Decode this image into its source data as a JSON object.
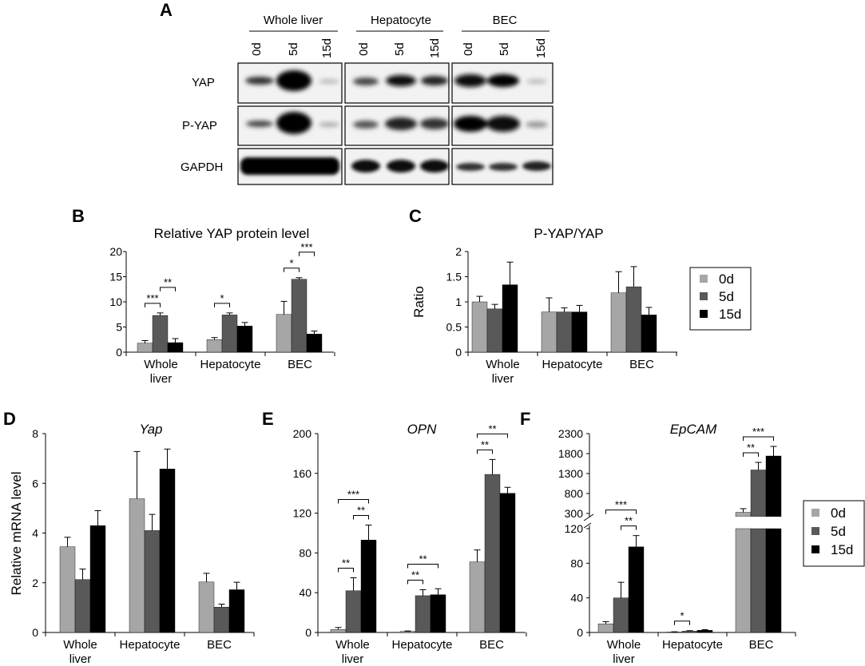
{
  "colors": {
    "d0": "#a6a6a6",
    "d5": "#595959",
    "d15": "#000000"
  },
  "legend": {
    "labels": [
      "0d",
      "5d",
      "15d"
    ]
  },
  "blot": {
    "panel_letter": "A",
    "groups": [
      "Whole liver",
      "Hepatocyte",
      "BEC"
    ],
    "lanes": [
      "0d",
      "5d",
      "15d"
    ],
    "rows": [
      "YAP",
      "P-YAP",
      "GAPDH"
    ]
  },
  "chart_data": [
    {
      "id": "B",
      "type": "bar",
      "panel_letter": "B",
      "title": "Relative YAP protein level",
      "ylabel": "",
      "categories": [
        "Whole liver",
        "Hepatocyte",
        "BEC"
      ],
      "ylim": [
        0,
        20
      ],
      "yticks": [
        "0",
        "5",
        "10",
        "15",
        "20"
      ],
      "series": [
        {
          "name": "0d",
          "values": [
            1.8,
            2.5,
            7.5
          ],
          "err": [
            0.5,
            0.4,
            2.6
          ]
        },
        {
          "name": "5d",
          "values": [
            7.3,
            7.4,
            14.5
          ],
          "err": [
            0.5,
            0.4,
            0.3
          ]
        },
        {
          "name": "15d",
          "values": [
            1.9,
            5.2,
            3.6
          ],
          "err": [
            0.8,
            0.7,
            0.6
          ]
        }
      ],
      "significance": [
        {
          "cat": 0,
          "from": 0,
          "to": 1,
          "label": "***"
        },
        {
          "cat": 0,
          "from": 1,
          "to": 2,
          "label": "**"
        },
        {
          "cat": 1,
          "from": 0,
          "to": 1,
          "label": "*"
        },
        {
          "cat": 2,
          "from": 0,
          "to": 1,
          "label": "*"
        },
        {
          "cat": 2,
          "from": 1,
          "to": 2,
          "label": "***"
        }
      ]
    },
    {
      "id": "C",
      "type": "bar",
      "panel_letter": "C",
      "title": "P-YAP/YAP",
      "ylabel": "Ratio",
      "categories": [
        "Whole liver",
        "Hepatocyte",
        "BEC"
      ],
      "ylim": [
        0,
        2
      ],
      "yticks": [
        "0",
        "0.5",
        "1",
        "1.5",
        "2"
      ],
      "series": [
        {
          "name": "0d",
          "values": [
            1.0,
            0.8,
            1.18
          ],
          "err": [
            0.11,
            0.28,
            0.42
          ]
        },
        {
          "name": "5d",
          "values": [
            0.86,
            0.8,
            1.3
          ],
          "err": [
            0.09,
            0.08,
            0.4
          ]
        },
        {
          "name": "15d",
          "values": [
            1.34,
            0.8,
            0.74
          ],
          "err": [
            0.45,
            0.13,
            0.15
          ]
        }
      ],
      "significance": []
    },
    {
      "id": "D",
      "type": "bar",
      "panel_letter": "D",
      "title": "Yap",
      "ylabel": "Relative mRNA level",
      "categories": [
        "Whole liver",
        "Hepatocyte",
        "BEC"
      ],
      "ylim": [
        0,
        8
      ],
      "yticks": [
        "0",
        "2",
        "4",
        "6",
        "8"
      ],
      "series": [
        {
          "name": "0d",
          "values": [
            3.45,
            5.38,
            2.03
          ],
          "err": [
            0.38,
            1.9,
            0.35
          ]
        },
        {
          "name": "5d",
          "values": [
            2.13,
            4.1,
            1.02
          ],
          "err": [
            0.42,
            0.65,
            0.12
          ]
        },
        {
          "name": "15d",
          "values": [
            4.3,
            6.58,
            1.72
          ],
          "err": [
            0.6,
            0.8,
            0.3
          ]
        }
      ],
      "significance": []
    },
    {
      "id": "E",
      "type": "bar",
      "panel_letter": "E",
      "title": "OPN",
      "ylabel": "",
      "categories": [
        "Whole liver",
        "Hepatocyte",
        "BEC"
      ],
      "ylim": [
        0,
        200
      ],
      "yticks": [
        "0",
        "40",
        "80",
        "120",
        "160",
        "200"
      ],
      "series": [
        {
          "name": "0d",
          "values": [
            3,
            1,
            71
          ],
          "err": [
            2,
            0.5,
            12
          ]
        },
        {
          "name": "5d",
          "values": [
            42,
            37,
            159
          ],
          "err": [
            13,
            6,
            15
          ]
        },
        {
          "name": "15d",
          "values": [
            93,
            38,
            140
          ],
          "err": [
            15,
            6,
            6
          ]
        }
      ],
      "significance": [
        {
          "cat": 0,
          "from": 0,
          "to": 1,
          "label": "**"
        },
        {
          "cat": 0,
          "from": 1,
          "to": 2,
          "label": "**"
        },
        {
          "cat": 0,
          "from": 0,
          "to": 2,
          "label": "***"
        },
        {
          "cat": 1,
          "from": 0,
          "to": 1,
          "label": "**"
        },
        {
          "cat": 1,
          "from": 0,
          "to": 2,
          "label": "**"
        },
        {
          "cat": 2,
          "from": 0,
          "to": 1,
          "label": "**"
        },
        {
          "cat": 2,
          "from": 0,
          "to": 2,
          "label": "**"
        }
      ]
    },
    {
      "id": "F",
      "type": "bar",
      "panel_letter": "F",
      "title": "EpCAM",
      "ylabel": "",
      "broken_axis": true,
      "categories": [
        "Whole liver",
        "Hepatocyte",
        "BEC"
      ],
      "lower_ylim": [
        0,
        120
      ],
      "upper_ylim": [
        300,
        2300
      ],
      "yticks_lower": [
        "0",
        "40",
        "80",
        "120"
      ],
      "yticks_upper": [
        "300",
        "800",
        "1300",
        "1800",
        "2300"
      ],
      "series": [
        {
          "name": "0d",
          "values": [
            10,
            0.5,
            330
          ],
          "err": [
            2.5,
            0.3,
            90
          ]
        },
        {
          "name": "5d",
          "values": [
            40,
            1.5,
            1390
          ],
          "err": [
            18,
            0.6,
            190
          ]
        },
        {
          "name": "15d",
          "values": [
            99,
            2.5,
            1740
          ],
          "err": [
            13,
            0.8,
            240
          ]
        }
      ],
      "significance": [
        {
          "cat": 0,
          "from": 1,
          "to": 2,
          "label": "**"
        },
        {
          "cat": 0,
          "from": 0,
          "to": 2,
          "label": "***"
        },
        {
          "cat": 1,
          "from": 0,
          "to": 1,
          "label": "*"
        },
        {
          "cat": 2,
          "from": 0,
          "to": 1,
          "label": "**"
        },
        {
          "cat": 2,
          "from": 0,
          "to": 2,
          "label": "***"
        }
      ]
    }
  ]
}
